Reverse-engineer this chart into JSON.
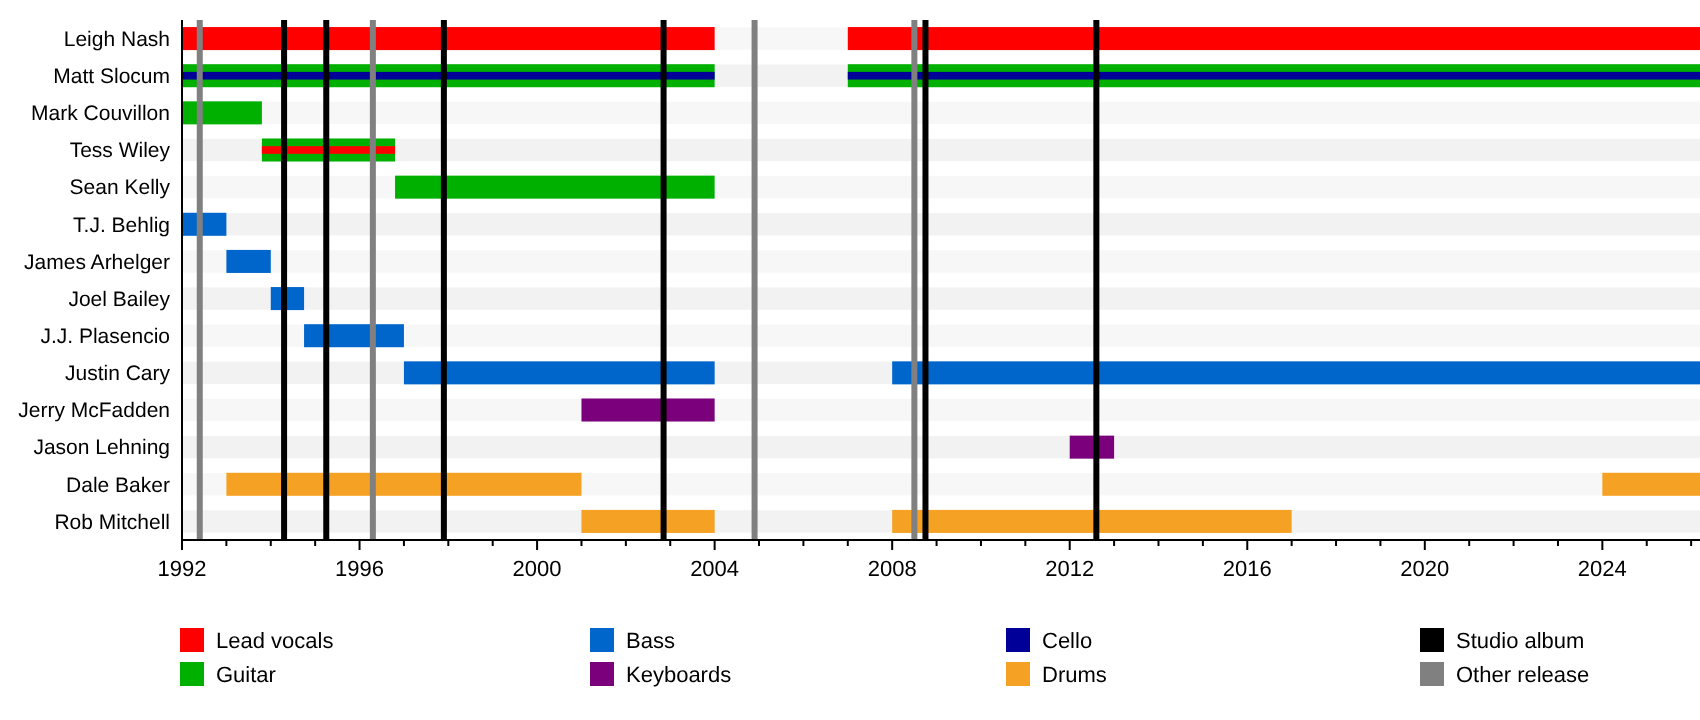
{
  "chart_data": {
    "type": "bar",
    "orientation": "horizontal",
    "legend": "bottom",
    "grid": false,
    "categories": [
      "Leigh Nash",
      "Matt Slocum",
      "Mark Couvillon",
      "Tess Wiley",
      "Sean Kelly",
      "T.J. Behlig",
      "James Arhelger",
      "Joel Bailey",
      "J.J. Plasencio",
      "Justin Cary",
      "Jerry McFadden",
      "Jason Lehning",
      "Dale Baker",
      "Rob Mitchell"
    ],
    "xlim": [
      1992,
      2026.2
    ],
    "xticks": [
      1992,
      {
        "value": 1993,
        "label": null
      },
      {
        "value": 1994,
        "label": null
      },
      {
        "value": 1995,
        "label": null
      },
      1996,
      {
        "value": 1997,
        "label": null
      },
      {
        "value": 1998,
        "label": null
      },
      {
        "value": 1999,
        "label": null
      },
      2000,
      {
        "value": 2001,
        "label": null
      },
      {
        "value": 2002,
        "label": null
      },
      {
        "value": 2003,
        "label": null
      },
      2004,
      {
        "value": 2005,
        "label": null
      },
      {
        "value": 2006,
        "label": null
      },
      {
        "value": 2007,
        "label": null
      },
      2008,
      {
        "value": 2009,
        "label": null
      },
      {
        "value": 2010,
        "label": null
      },
      {
        "value": 2011,
        "label": null
      },
      2012,
      {
        "value": 2013,
        "label": null
      },
      {
        "value": 2014,
        "label": null
      },
      {
        "value": 2015,
        "label": null
      },
      2016,
      {
        "value": 2017,
        "label": null
      },
      {
        "value": 2018,
        "label": null
      },
      {
        "value": 2019,
        "label": null
      },
      2020,
      {
        "value": 2021,
        "label": null
      },
      {
        "value": 2022,
        "label": null
      },
      {
        "value": 2023,
        "label": null
      },
      2024,
      {
        "value": 2025,
        "label": null
      },
      {
        "value": 2026,
        "label": null
      }
    ],
    "series": [
      {
        "name": "Lead vocals",
        "color": "#ff0000",
        "base": [
          1992,
          null,
          null,
          null,
          null,
          null,
          null,
          null,
          null,
          null,
          null,
          null,
          null,
          null
        ],
        "values": [
          12,
          null,
          null,
          null,
          null,
          null,
          null,
          null,
          null,
          null,
          null,
          null,
          null,
          null
        ]
      },
      {
        "name": "Guitar",
        "color": "#00b000",
        "base": [
          null,
          1992,
          1992,
          1993.8,
          1996.8,
          null,
          null,
          null,
          null,
          null,
          null,
          null,
          null,
          null
        ],
        "values": [
          null,
          12,
          1.8,
          3,
          7.2,
          null,
          null,
          null,
          null,
          null,
          null,
          null,
          null,
          null
        ]
      },
      {
        "name": "Bass",
        "color": "#0066cc",
        "base": [
          null,
          null,
          null,
          null,
          null,
          1992,
          1993,
          1994,
          1994.75,
          1997,
          null,
          null,
          null,
          null
        ],
        "values": [
          null,
          null,
          null,
          null,
          null,
          1,
          1,
          0.75,
          2.25,
          7,
          null,
          null,
          null,
          null
        ]
      },
      {
        "name": "Keyboards",
        "color": "#7b007b",
        "base": [
          null,
          null,
          null,
          null,
          null,
          null,
          null,
          null,
          null,
          null,
          2001,
          2012,
          null,
          null
        ],
        "values": [
          null,
          null,
          null,
          null,
          null,
          null,
          null,
          null,
          null,
          null,
          3,
          1,
          null,
          null
        ]
      },
      {
        "name": "Cello",
        "color": "#000099",
        "base": [
          null,
          1992,
          null,
          null,
          null,
          null,
          null,
          null,
          null,
          null,
          null,
          null,
          null,
          null
        ],
        "values": [
          null,
          12,
          null,
          null,
          null,
          null,
          null,
          null,
          null,
          null,
          null,
          null,
          null,
          null
        ]
      },
      {
        "name": "Drums",
        "color": "#f5a123",
        "base": [
          null,
          null,
          null,
          null,
          null,
          null,
          null,
          null,
          null,
          null,
          null,
          null,
          1993,
          2001
        ],
        "values": [
          null,
          null,
          null,
          null,
          null,
          null,
          null,
          null,
          null,
          null,
          null,
          null,
          8,
          3
        ]
      },
      {
        "color": "#ff0000",
        "base": [
          2007,
          null,
          null,
          1993.8,
          null,
          null,
          null,
          null,
          null,
          null,
          null,
          null,
          null,
          null
        ],
        "values": [
          19.2,
          null,
          null,
          3,
          null,
          null,
          null,
          null,
          null,
          null,
          null,
          null,
          null,
          null
        ]
      },
      {
        "color": "#00b000",
        "base": [
          null,
          2007,
          null,
          null,
          null,
          null,
          null,
          null,
          null,
          null,
          null,
          null,
          null,
          null
        ],
        "values": [
          null,
          19.2,
          null,
          null,
          null,
          null,
          null,
          null,
          null,
          null,
          null,
          null,
          null,
          null
        ]
      },
      {
        "color": "#000099",
        "base": [
          null,
          2007,
          null,
          null,
          null,
          null,
          null,
          null,
          null,
          null,
          null,
          null,
          null,
          null
        ],
        "values": [
          null,
          19.2,
          null,
          null,
          null,
          null,
          null,
          null,
          null,
          null,
          null,
          null,
          null,
          null
        ]
      },
      {
        "color": "#0066cc",
        "base": [
          null,
          null,
          null,
          null,
          null,
          null,
          null,
          null,
          null,
          2008,
          null,
          null,
          null,
          null
        ],
        "values": [
          null,
          null,
          null,
          null,
          null,
          null,
          null,
          null,
          null,
          18.2,
          null,
          null,
          null,
          null
        ]
      },
      {
        "color": "#f5a123",
        "base": [
          null,
          null,
          null,
          null,
          null,
          null,
          null,
          null,
          null,
          null,
          null,
          null,
          2024,
          2008
        ],
        "values": [
          null,
          null,
          null,
          null,
          null,
          null,
          null,
          null,
          null,
          null,
          null,
          null,
          2.2,
          9
        ]
      }
    ],
    "ref_lines": [
      {
        "axis": "x",
        "value": 1994.3,
        "label": "Studio album",
        "color": "#000000"
      },
      {
        "axis": "x",
        "value": 1995.25,
        "label": null,
        "color": "#000000"
      },
      {
        "axis": "x",
        "value": 1997.9,
        "label": null,
        "color": "#000000"
      },
      {
        "axis": "x",
        "value": 2002.85,
        "label": null,
        "color": "#000000"
      },
      {
        "axis": "x",
        "value": 2008.75,
        "label": null,
        "color": "#000000"
      },
      {
        "axis": "x",
        "value": 2012.6,
        "label": null,
        "color": "#000000"
      },
      {
        "axis": "x",
        "value": 1992.4,
        "label": "Other release",
        "color": "#808080"
      },
      {
        "axis": "x",
        "value": 1996.3,
        "label": null,
        "color": "#808080"
      },
      {
        "axis": "x",
        "value": 2004.9,
        "label": null,
        "color": "#808080"
      },
      {
        "axis": "x",
        "value": 2008.5,
        "label": null,
        "color": "#808080"
      }
    ]
  }
}
